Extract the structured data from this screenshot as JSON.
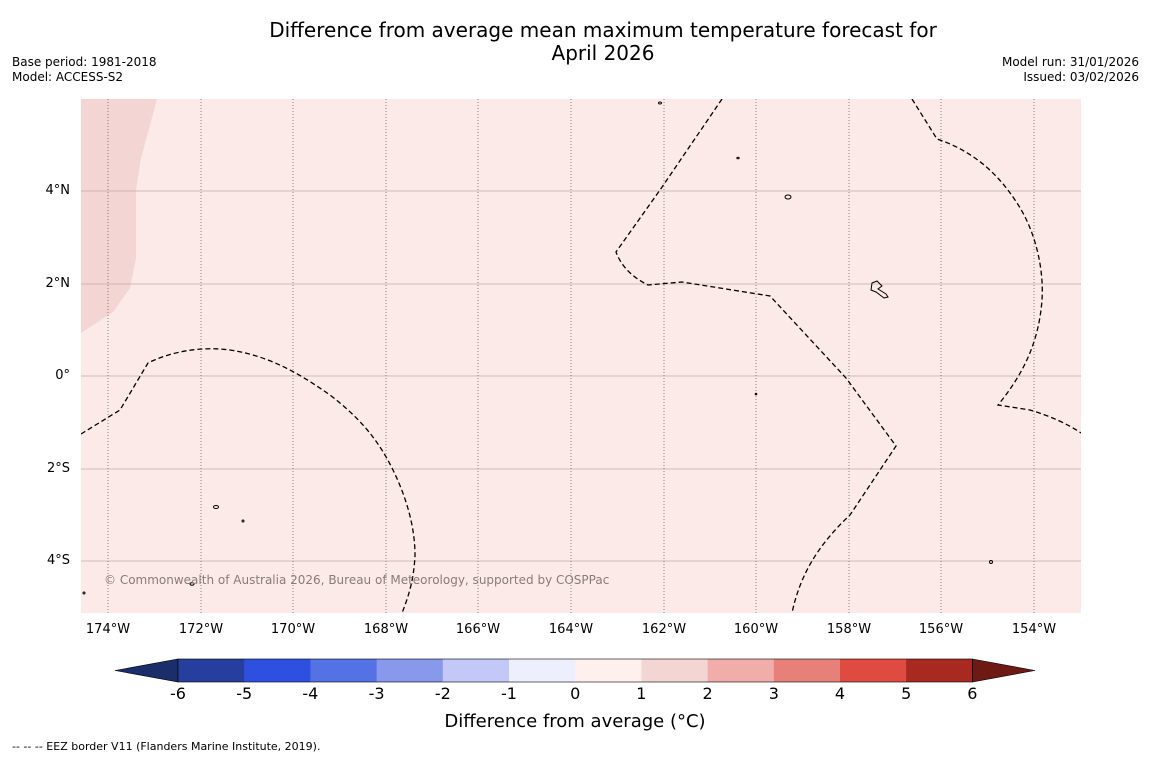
{
  "title_line1": "Difference from average mean maximum temperature forecast for",
  "title_line2": "April 2026",
  "base_period": "Base period: 1981-2018",
  "model": "Model: ACCESS-S2",
  "model_run": "Model run: 31/01/2026",
  "issued": "Issued: 03/02/2026",
  "map": {
    "background_color": "#fbeae8",
    "warm_area_color": "#f3d5d3",
    "lat_labels": [
      "4°N",
      "2°N",
      "0°",
      "2°S",
      "4°S"
    ],
    "lon_labels": [
      "174°W",
      "172°W",
      "170°W",
      "168°W",
      "166°W",
      "164°W",
      "162°W",
      "160°W",
      "158°W",
      "156°W",
      "154°W"
    ],
    "copyright": "© Commonwealth of Australia 2026, Bureau of Meteorology, supported by COSPPac"
  },
  "colorbar": {
    "ticks": [
      "-6",
      "-5",
      "-4",
      "-3",
      "-2",
      "-1",
      "0",
      "1",
      "2",
      "3",
      "4",
      "5",
      "6"
    ],
    "colors": [
      "#263e9e",
      "#2d50e0",
      "#5572e4",
      "#8898ea",
      "#c3c8f6",
      "#edeffc",
      "#fdf0ed",
      "#f3d5d3",
      "#f0adaa",
      "#e8807a",
      "#df4a41",
      "#a8291f"
    ],
    "low_extend_color": "#1b2d6b",
    "high_extend_color": "#6e1a14",
    "label": "Difference from average ($^\\circ$C)",
    "label_display": "Difference from average (°C)"
  },
  "footer": "--  --  -- EEZ border V11 (Flanders Marine Institute, 2019)."
}
